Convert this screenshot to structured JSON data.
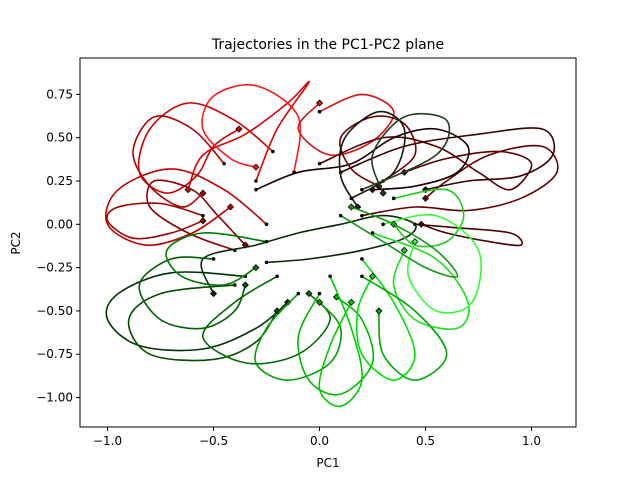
{
  "chart_data": {
    "type": "line",
    "title": "Trajectories in the PC1-PC2 plane",
    "xlabel": "PC1",
    "ylabel": "PC2",
    "xlim": [
      -1.13,
      1.21
    ],
    "ylim": [
      -1.17,
      0.96
    ],
    "xticks": [
      -1.0,
      -0.5,
      0.0,
      0.5,
      1.0
    ],
    "xtick_labels": [
      "−1.0",
      "−0.5",
      "0.0",
      "0.5",
      "1.0"
    ],
    "yticks": [
      -1.0,
      -0.75,
      -0.5,
      -0.25,
      0.0,
      0.25,
      0.5,
      0.75
    ],
    "ytick_labels": [
      "−1.00",
      "−0.75",
      "−0.50",
      "−0.25",
      "0.00",
      "0.25",
      "0.50",
      "0.75"
    ],
    "grid": false,
    "legend": "none",
    "note_markers": "each trajectory starts at a small black dot and ends at a diamond marker in the trajectory color",
    "series": [
      {
        "color": "#cc0000",
        "points": [
          [
            -0.22,
            0.42
          ],
          [
            -0.4,
            0.6
          ],
          [
            -0.62,
            0.7
          ],
          [
            -0.8,
            0.55
          ],
          [
            -0.85,
            0.3
          ],
          [
            -0.72,
            0.18
          ],
          [
            -0.58,
            0.28
          ],
          [
            -0.5,
            0.45
          ],
          [
            -0.38,
            0.55
          ]
        ]
      },
      {
        "color": "#e00000",
        "points": [
          [
            -0.3,
            0.25
          ],
          [
            -0.2,
            0.55
          ],
          [
            -0.05,
            0.82
          ],
          [
            -0.15,
            0.7
          ],
          [
            -0.35,
            0.52
          ],
          [
            -0.55,
            0.4
          ],
          [
            -0.62,
            0.2
          ]
        ]
      },
      {
        "color": "#b30000",
        "points": [
          [
            -0.45,
            0.35
          ],
          [
            -0.6,
            0.55
          ],
          [
            -0.78,
            0.62
          ],
          [
            -0.88,
            0.42
          ],
          [
            -0.8,
            0.22
          ],
          [
            -0.65,
            0.1
          ],
          [
            -0.55,
            0.18
          ]
        ]
      },
      {
        "color": "#ff1a1a",
        "points": [
          [
            -0.12,
            0.3
          ],
          [
            -0.1,
            0.62
          ],
          [
            -0.3,
            0.8
          ],
          [
            -0.5,
            0.74
          ],
          [
            -0.55,
            0.55
          ],
          [
            -0.42,
            0.38
          ],
          [
            -0.3,
            0.33
          ]
        ]
      },
      {
        "color": "#990000",
        "points": [
          [
            -0.55,
            0.05
          ],
          [
            -0.75,
            0.12
          ],
          [
            -0.95,
            0.1
          ],
          [
            -1.0,
            0.02
          ],
          [
            -0.88,
            -0.08
          ],
          [
            -0.7,
            -0.05
          ],
          [
            -0.55,
            0.02
          ]
        ]
      },
      {
        "color": "#c00000",
        "points": [
          [
            -0.25,
            0.0
          ],
          [
            -0.45,
            0.2
          ],
          [
            -0.7,
            0.32
          ],
          [
            -0.95,
            0.2
          ],
          [
            -1.0,
            0.0
          ],
          [
            -0.82,
            -0.12
          ],
          [
            -0.6,
            -0.05
          ],
          [
            -0.42,
            0.1
          ]
        ]
      },
      {
        "color": "#8b0000",
        "points": [
          [
            -0.4,
            -0.15
          ],
          [
            -0.62,
            -0.05
          ],
          [
            -0.8,
            0.1
          ],
          [
            -0.78,
            0.25
          ],
          [
            -0.6,
            0.2
          ],
          [
            -0.48,
            0.05
          ],
          [
            -0.35,
            -0.12
          ]
        ]
      },
      {
        "color": "#dd1111",
        "points": [
          [
            0.0,
            0.65
          ],
          [
            0.2,
            0.75
          ],
          [
            0.35,
            0.65
          ],
          [
            0.25,
            0.48
          ],
          [
            0.05,
            0.4
          ],
          [
            -0.1,
            0.55
          ],
          [
            0.0,
            0.7
          ]
        ]
      },
      {
        "color": "#550000",
        "points": [
          [
            0.0,
            0.35
          ],
          [
            0.3,
            0.5
          ],
          [
            0.55,
            0.45
          ],
          [
            0.75,
            0.3
          ],
          [
            0.9,
            0.2
          ],
          [
            1.0,
            0.35
          ],
          [
            0.85,
            0.42
          ],
          [
            0.6,
            0.38
          ],
          [
            0.4,
            0.3
          ]
        ]
      },
      {
        "color": "#3a0000",
        "points": [
          [
            0.1,
            0.3
          ],
          [
            0.4,
            0.45
          ],
          [
            0.75,
            0.52
          ],
          [
            1.05,
            0.55
          ],
          [
            1.1,
            0.4
          ],
          [
            0.95,
            0.28
          ],
          [
            0.7,
            0.25
          ],
          [
            0.5,
            0.2
          ]
        ]
      },
      {
        "color": "#660000",
        "points": [
          [
            0.2,
            0.05
          ],
          [
            0.45,
            0.1
          ],
          [
            0.7,
            0.08
          ],
          [
            0.95,
            0.15
          ],
          [
            1.12,
            0.3
          ],
          [
            1.05,
            0.45
          ],
          [
            0.8,
            0.4
          ],
          [
            0.6,
            0.25
          ],
          [
            0.5,
            0.15
          ]
        ]
      },
      {
        "color": "#4d0000",
        "points": [
          [
            0.45,
            0.0
          ],
          [
            0.65,
            -0.02
          ],
          [
            0.9,
            -0.05
          ],
          [
            0.95,
            -0.12
          ],
          [
            0.8,
            -0.1
          ],
          [
            0.6,
            -0.05
          ],
          [
            0.48,
            0.0
          ]
        ]
      },
      {
        "color": "#1a0000",
        "points": [
          [
            -0.3,
            0.2
          ],
          [
            -0.1,
            0.3
          ],
          [
            0.15,
            0.35
          ],
          [
            0.35,
            0.5
          ],
          [
            0.55,
            0.55
          ],
          [
            0.7,
            0.45
          ],
          [
            0.65,
            0.3
          ],
          [
            0.45,
            0.22
          ],
          [
            0.25,
            0.2
          ]
        ]
      },
      {
        "color": "#700000",
        "points": [
          [
            0.3,
            0.25
          ],
          [
            0.45,
            0.4
          ],
          [
            0.4,
            0.58
          ],
          [
            0.25,
            0.62
          ],
          [
            0.1,
            0.5
          ],
          [
            0.15,
            0.32
          ],
          [
            0.28,
            0.22
          ]
        ]
      },
      {
        "color": "#0d1a0d",
        "points": [
          [
            0.15,
            0.15
          ],
          [
            0.35,
            0.3
          ],
          [
            0.4,
            0.55
          ],
          [
            0.28,
            0.65
          ],
          [
            0.12,
            0.5
          ],
          [
            0.1,
            0.28
          ],
          [
            0.18,
            0.1
          ]
        ]
      },
      {
        "color": "#1f3d1f",
        "points": [
          [
            0.2,
            0.2
          ],
          [
            0.55,
            0.4
          ],
          [
            0.6,
            0.6
          ],
          [
            0.4,
            0.62
          ],
          [
            0.25,
            0.4
          ],
          [
            0.3,
            0.18
          ]
        ]
      },
      {
        "color": "#0a2a0a",
        "points": [
          [
            -0.25,
            -0.22
          ],
          [
            -0.05,
            -0.2
          ],
          [
            0.2,
            -0.15
          ],
          [
            0.4,
            -0.08
          ],
          [
            0.45,
            0.0
          ],
          [
            0.3,
            0.05
          ],
          [
            0.1,
            0.0
          ],
          [
            -0.1,
            -0.05
          ],
          [
            -0.3,
            -0.12
          ],
          [
            -0.55,
            -0.2
          ],
          [
            -0.5,
            -0.4
          ]
        ]
      },
      {
        "color": "#003300",
        "points": [
          [
            -0.35,
            -0.3
          ],
          [
            -0.7,
            -0.28
          ],
          [
            -0.95,
            -0.4
          ],
          [
            -1.0,
            -0.55
          ],
          [
            -0.85,
            -0.7
          ],
          [
            -0.55,
            -0.72
          ],
          [
            -0.3,
            -0.6
          ],
          [
            -0.15,
            -0.45
          ]
        ]
      },
      {
        "color": "#004d00",
        "points": [
          [
            -0.4,
            -0.35
          ],
          [
            -0.75,
            -0.4
          ],
          [
            -0.9,
            -0.55
          ],
          [
            -0.8,
            -0.75
          ],
          [
            -0.5,
            -0.78
          ],
          [
            -0.3,
            -0.68
          ],
          [
            -0.2,
            -0.5
          ]
        ]
      },
      {
        "color": "#005f00",
        "points": [
          [
            -0.5,
            -0.2
          ],
          [
            -0.7,
            -0.2
          ],
          [
            -0.85,
            -0.35
          ],
          [
            -0.75,
            -0.55
          ],
          [
            -0.55,
            -0.6
          ],
          [
            -0.4,
            -0.5
          ],
          [
            -0.35,
            -0.35
          ]
        ]
      },
      {
        "color": "#006b00",
        "points": [
          [
            -0.2,
            -0.3
          ],
          [
            -0.4,
            -0.45
          ],
          [
            -0.55,
            -0.65
          ],
          [
            -0.35,
            -0.8
          ],
          [
            -0.1,
            -0.75
          ],
          [
            0.05,
            -0.55
          ],
          [
            -0.05,
            -0.4
          ]
        ]
      },
      {
        "color": "#007a00",
        "points": [
          [
            -0.25,
            -0.1
          ],
          [
            -0.55,
            -0.05
          ],
          [
            -0.72,
            -0.15
          ],
          [
            -0.65,
            -0.3
          ],
          [
            -0.45,
            -0.35
          ],
          [
            -0.3,
            -0.25
          ]
        ]
      },
      {
        "color": "#00a000",
        "points": [
          [
            -0.1,
            -0.4
          ],
          [
            -0.25,
            -0.6
          ],
          [
            -0.3,
            -0.8
          ],
          [
            -0.15,
            -0.9
          ],
          [
            0.05,
            -0.8
          ],
          [
            0.1,
            -0.6
          ],
          [
            0.0,
            -0.45
          ]
        ]
      },
      {
        "color": "#00b800",
        "points": [
          [
            0.0,
            -0.4
          ],
          [
            -0.1,
            -0.65
          ],
          [
            -0.05,
            -0.9
          ],
          [
            0.1,
            -0.98
          ],
          [
            0.25,
            -0.8
          ],
          [
            0.2,
            -0.55
          ],
          [
            0.08,
            -0.42
          ]
        ]
      },
      {
        "color": "#00cc00",
        "points": [
          [
            0.05,
            -0.3
          ],
          [
            0.15,
            -0.6
          ],
          [
            0.2,
            -0.9
          ],
          [
            0.1,
            -1.05
          ],
          [
            0.0,
            -0.95
          ],
          [
            0.05,
            -0.7
          ],
          [
            0.15,
            -0.45
          ]
        ]
      },
      {
        "color": "#00e000",
        "points": [
          [
            0.2,
            -0.2
          ],
          [
            0.35,
            -0.45
          ],
          [
            0.45,
            -0.75
          ],
          [
            0.35,
            -0.9
          ],
          [
            0.2,
            -0.75
          ],
          [
            0.18,
            -0.5
          ],
          [
            0.25,
            -0.3
          ]
        ]
      },
      {
        "color": "#1ae01a",
        "points": [
          [
            0.25,
            -0.05
          ],
          [
            0.55,
            -0.2
          ],
          [
            0.7,
            -0.45
          ],
          [
            0.65,
            -0.6
          ],
          [
            0.45,
            -0.55
          ],
          [
            0.35,
            -0.35
          ],
          [
            0.4,
            -0.15
          ]
        ]
      },
      {
        "color": "#33ff33",
        "points": [
          [
            0.3,
            0.0
          ],
          [
            0.55,
            0.05
          ],
          [
            0.75,
            -0.15
          ],
          [
            0.72,
            -0.45
          ],
          [
            0.55,
            -0.5
          ],
          [
            0.42,
            -0.3
          ],
          [
            0.45,
            -0.1
          ]
        ]
      },
      {
        "color": "#22cc22",
        "points": [
          [
            0.35,
            0.15
          ],
          [
            0.6,
            0.2
          ],
          [
            0.68,
            0.05
          ],
          [
            0.6,
            -0.1
          ],
          [
            0.45,
            -0.12
          ],
          [
            0.35,
            0.0
          ]
        ]
      },
      {
        "color": "#00a800",
        "points": [
          [
            0.2,
            -0.3
          ],
          [
            0.45,
            -0.5
          ],
          [
            0.6,
            -0.75
          ],
          [
            0.45,
            -0.9
          ],
          [
            0.3,
            -0.75
          ],
          [
            0.28,
            -0.5
          ]
        ]
      },
      {
        "color": "#119911",
        "points": [
          [
            0.1,
            0.05
          ],
          [
            0.3,
            -0.1
          ],
          [
            0.5,
            -0.25
          ],
          [
            0.65,
            -0.3
          ],
          [
            0.55,
            -0.15
          ],
          [
            0.35,
            0.0
          ],
          [
            0.15,
            0.1
          ]
        ]
      }
    ]
  }
}
